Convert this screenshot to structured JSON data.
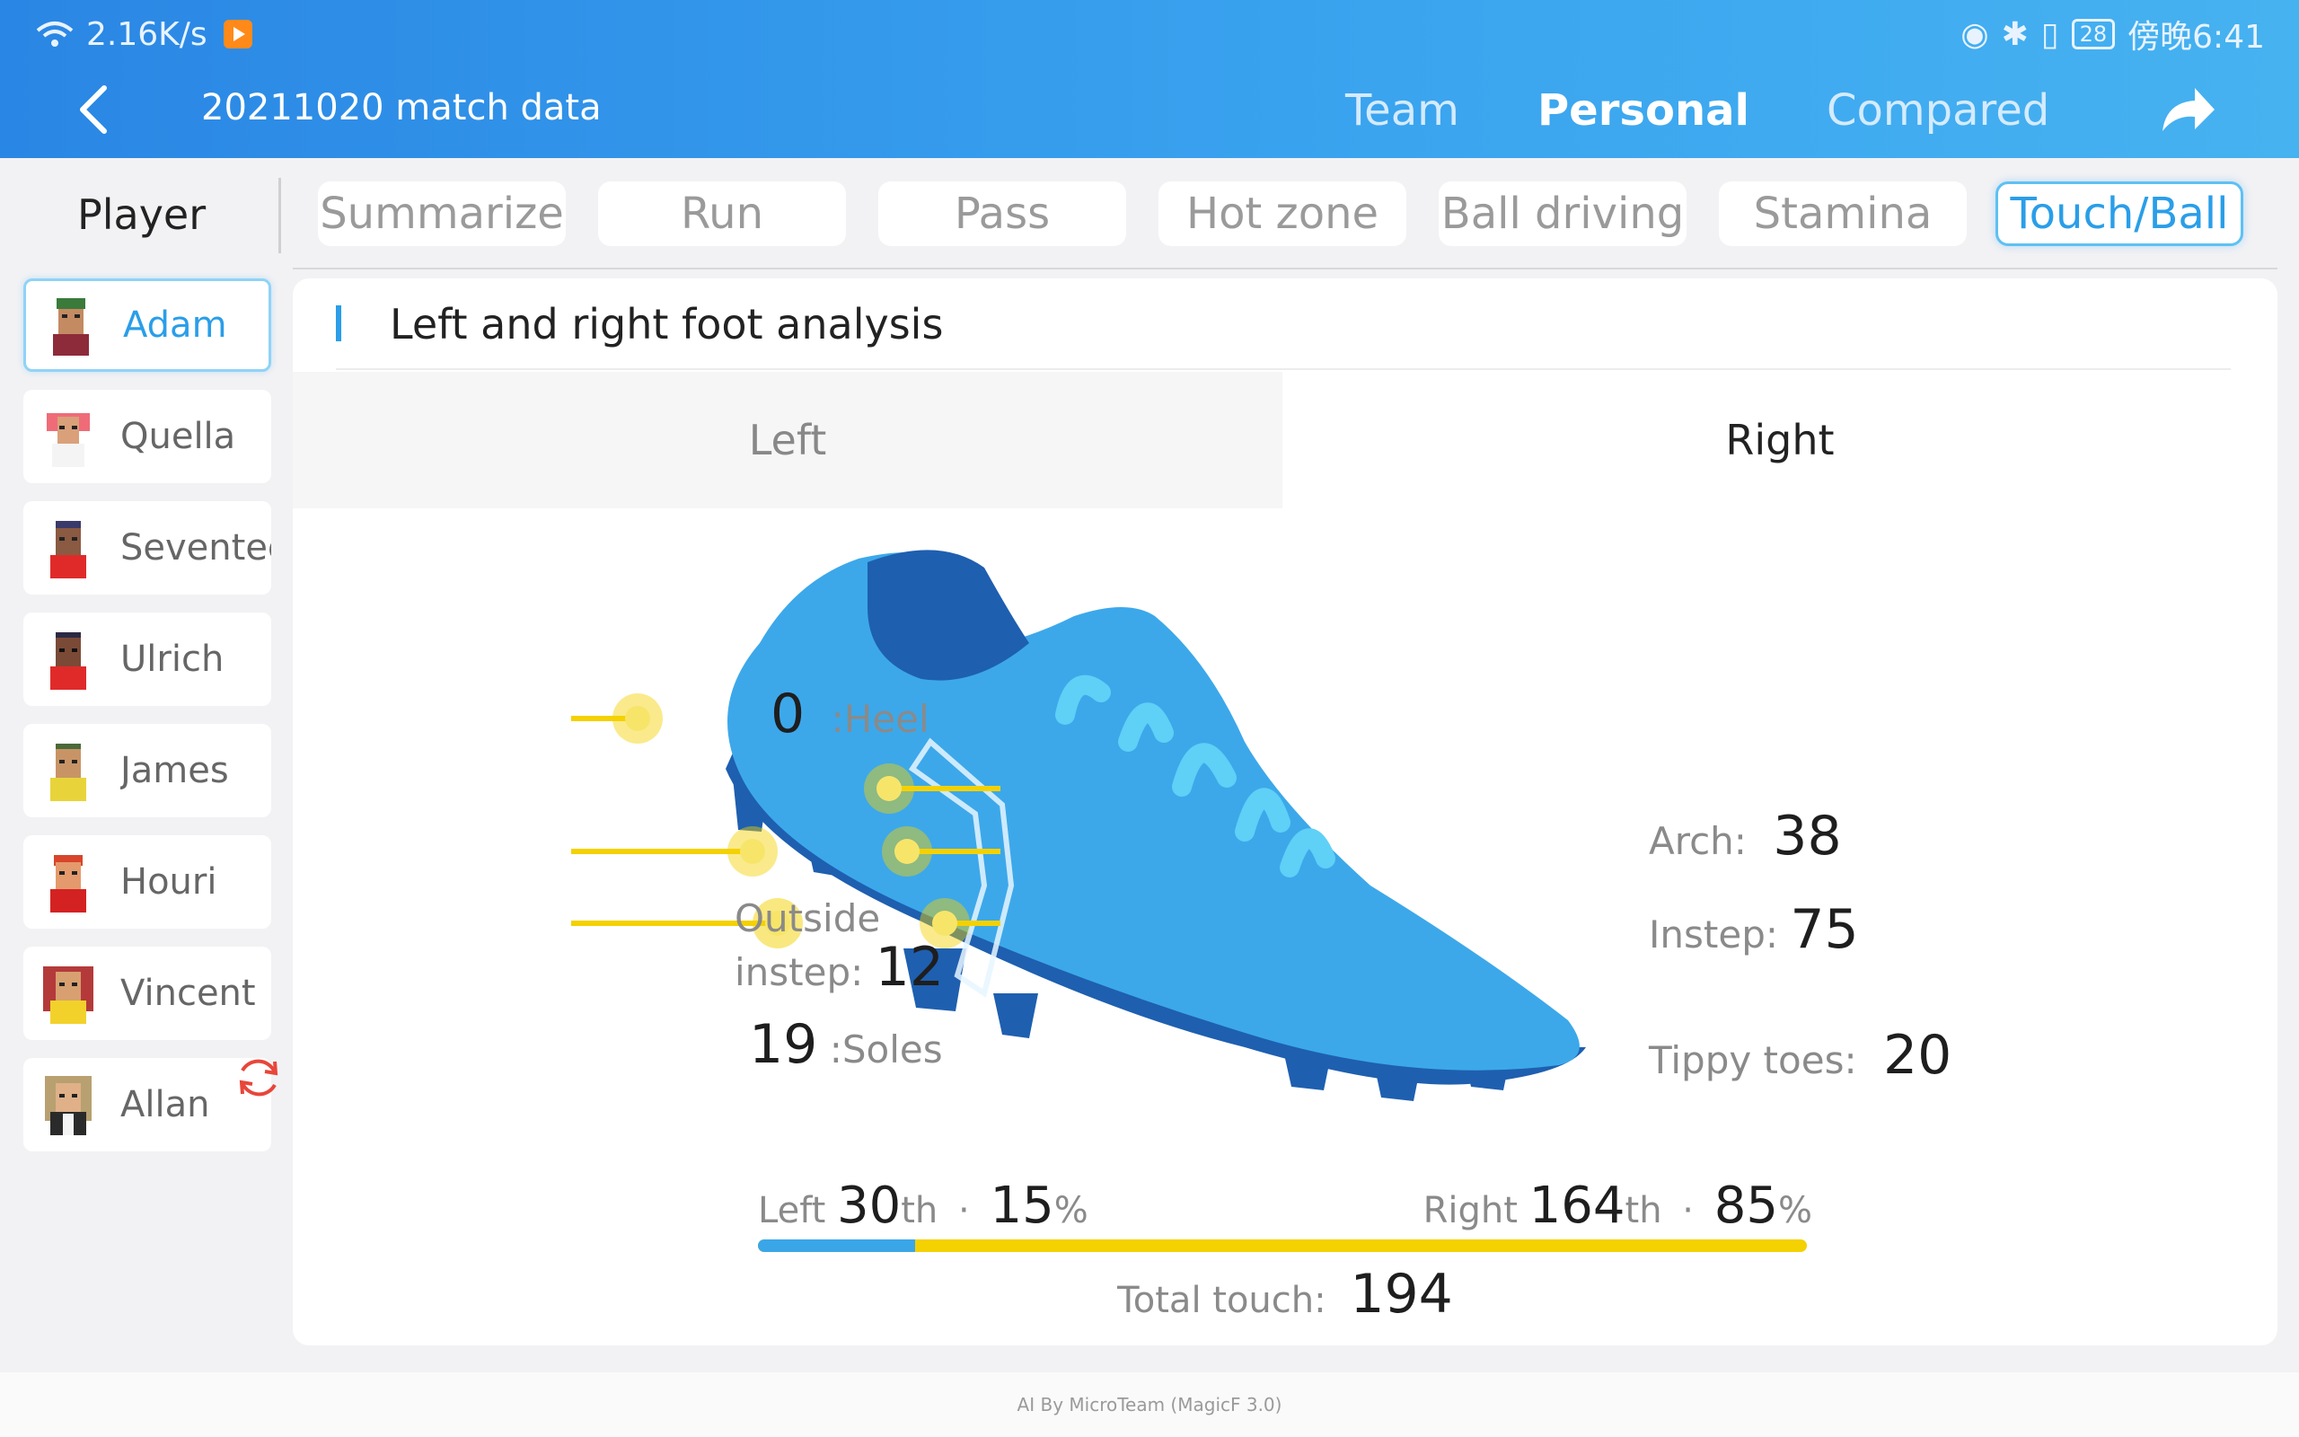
{
  "status_bar": {
    "network_speed": "2.16K/s",
    "battery": "28",
    "time": "傍晚6:41"
  },
  "header": {
    "title": "20211020 match data",
    "tabs": [
      {
        "label": "Team",
        "active": false
      },
      {
        "label": "Personal",
        "active": true
      },
      {
        "label": "Compared",
        "active": false
      }
    ]
  },
  "sidebar": {
    "heading": "Player",
    "players": [
      {
        "name": "Adam",
        "active": true
      },
      {
        "name": "Quella",
        "active": false
      },
      {
        "name": "Seventee",
        "active": false
      },
      {
        "name": "Ulrich",
        "active": false
      },
      {
        "name": "James",
        "active": false
      },
      {
        "name": "Houri",
        "active": false
      },
      {
        "name": "Vincent",
        "active": false
      },
      {
        "name": "Allan",
        "active": false
      }
    ]
  },
  "subtabs": [
    {
      "label": "Summarize",
      "active": false
    },
    {
      "label": "Run",
      "active": false
    },
    {
      "label": "Pass",
      "active": false
    },
    {
      "label": "Hot zone",
      "active": false
    },
    {
      "label": "Ball driving",
      "active": false
    },
    {
      "label": "Stamina",
      "active": false
    },
    {
      "label": "Touch/Ball",
      "active": true
    }
  ],
  "analysis": {
    "section_title": "Left and right foot analysis",
    "toggle": {
      "left": "Left",
      "right": "Right",
      "selected": "Right"
    },
    "zones": {
      "heel": {
        "label": ":Heel",
        "value": "0"
      },
      "outside_instep": {
        "label_line1": "Outside",
        "label_line2": "instep:",
        "value": "12"
      },
      "soles": {
        "label": ":Soles",
        "value": "19"
      },
      "arch": {
        "label": "Arch:",
        "value": "38"
      },
      "instep": {
        "label": "Instep:",
        "value": "75"
      },
      "tippy_toes": {
        "label": "Tippy toes:",
        "value": "20"
      }
    },
    "summary": {
      "left_label": "Left",
      "left_count": "30",
      "left_suffix": "th",
      "left_percent": "15",
      "left_fraction": 0.15,
      "right_label": "Right",
      "right_count": "164",
      "right_suffix": "th",
      "right_percent": "85",
      "percent_sign": "%",
      "separator": "·",
      "total_label": "Total touch:",
      "total_value": "194"
    }
  },
  "footer": {
    "text": "AI By MicroTeam (MagicF 3.0)"
  },
  "colors": {
    "accent": "#2a9ee8",
    "shoe": "#3ca8ea",
    "shoe_dark": "#1e5fb0",
    "marker": "#f4d100",
    "left_bar": "#3aa6e8"
  }
}
